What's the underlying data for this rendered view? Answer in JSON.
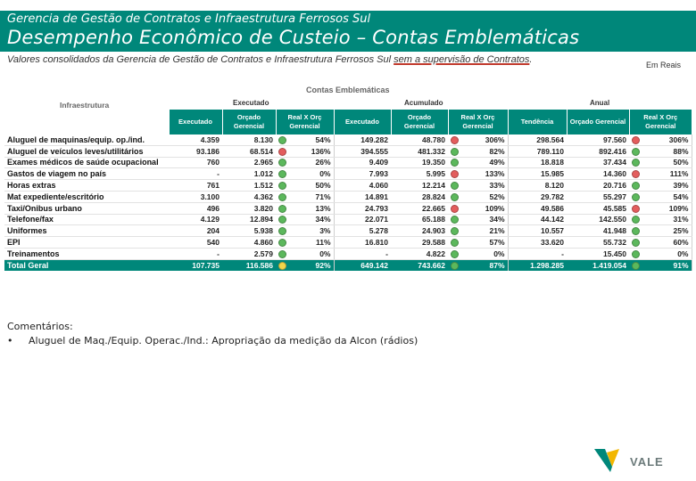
{
  "header": {
    "subtitle": "Gerencia de Gestão de Contratos e Infraestrutura Ferrosos Sul",
    "title": "Desempenho Econômico de Custeio – Contas Emblemáticas"
  },
  "description": {
    "text_a": "Valores consolidados da Gerencia de Gestão de Contratos e Infraestrutura Ferrosos Sul",
    "text_b": "sem a supervisão de Contratos",
    "text_end": "."
  },
  "unit_label": "Em Reais",
  "table": {
    "title": "Contas Emblemáticas",
    "section_label": "Infraestrutura",
    "groups": {
      "executado": "Executado",
      "acumulado": "Acumulado",
      "anual": "Anual"
    },
    "columns": [
      "Executado",
      "Orçado Gerencial",
      "Real X Orç Gerencial",
      "Executado",
      "Orçado Gerencial",
      "Real X Orç Gerencial",
      "Tendência",
      "Orçado Gerencial",
      "Real X Orç Gerencial"
    ],
    "rows": [
      {
        "label": "Aluguel de maquinas/equip. op./ind.",
        "v": [
          "4.359",
          "8.130",
          "54%",
          "149.282",
          "48.780",
          "306%",
          "298.564",
          "97.560",
          "306%"
        ],
        "s": [
          "green",
          "red",
          "red"
        ]
      },
      {
        "label": "Aluguel de veículos leves/utilitários",
        "v": [
          "93.186",
          "68.514",
          "136%",
          "394.555",
          "481.332",
          "82%",
          "789.110",
          "892.416",
          "88%"
        ],
        "s": [
          "red",
          "green",
          "green"
        ]
      },
      {
        "label": "Exames médicos de saúde ocupacional",
        "v": [
          "760",
          "2.965",
          "26%",
          "9.409",
          "19.350",
          "49%",
          "18.818",
          "37.434",
          "50%"
        ],
        "s": [
          "green",
          "green",
          "green"
        ]
      },
      {
        "label": "Gastos de viagem no país",
        "v": [
          "-",
          "1.012",
          "0%",
          "7.993",
          "5.995",
          "133%",
          "15.985",
          "14.360",
          "111%"
        ],
        "s": [
          "green",
          "red",
          "red"
        ]
      },
      {
        "label": "Horas extras",
        "v": [
          "761",
          "1.512",
          "50%",
          "4.060",
          "12.214",
          "33%",
          "8.120",
          "20.716",
          "39%"
        ],
        "s": [
          "green",
          "green",
          "green"
        ]
      },
      {
        "label": "Mat expediente/escritório",
        "v": [
          "3.100",
          "4.362",
          "71%",
          "14.891",
          "28.824",
          "52%",
          "29.782",
          "55.297",
          "54%"
        ],
        "s": [
          "green",
          "green",
          "green"
        ]
      },
      {
        "label": "Taxi/Onibus urbano",
        "v": [
          "496",
          "3.820",
          "13%",
          "24.793",
          "22.665",
          "109%",
          "49.586",
          "45.585",
          "109%"
        ],
        "s": [
          "green",
          "red",
          "red"
        ]
      },
      {
        "label": "Telefone/fax",
        "v": [
          "4.129",
          "12.894",
          "34%",
          "22.071",
          "65.188",
          "34%",
          "44.142",
          "142.550",
          "31%"
        ],
        "s": [
          "green",
          "green",
          "green"
        ]
      },
      {
        "label": "Uniformes",
        "v": [
          "204",
          "5.938",
          "3%",
          "5.278",
          "24.903",
          "21%",
          "10.557",
          "41.948",
          "25%"
        ],
        "s": [
          "green",
          "green",
          "green"
        ]
      },
      {
        "label": "EPI",
        "v": [
          "540",
          "4.860",
          "11%",
          "16.810",
          "29.588",
          "57%",
          "33.620",
          "55.732",
          "60%"
        ],
        "s": [
          "green",
          "green",
          "green"
        ]
      },
      {
        "label": "Treinamentos",
        "v": [
          "-",
          "2.579",
          "0%",
          "-",
          "4.822",
          "0%",
          "-",
          "15.450",
          "0%"
        ],
        "s": [
          "green",
          "green",
          "green"
        ]
      }
    ],
    "total": {
      "label": "Total Geral",
      "v": [
        "107.735",
        "116.586",
        "92%",
        "649.142",
        "743.662",
        "87%",
        "1.298.285",
        "1.419.054",
        "91%"
      ],
      "s": [
        "yellow",
        "green",
        "green"
      ]
    }
  },
  "comments": {
    "title": "Comentários:",
    "bullet_mark": "•",
    "item": "Aluguel de Maq./Equip. Operac./Ind.: Apropriação da medição da Alcon (rádios)"
  },
  "logo": {
    "text": "VALE",
    "colors": {
      "green": "#00877a",
      "yellow": "#f2b600"
    }
  },
  "colors": {
    "header_bg": "#00877a",
    "status_green": "#5cb85c",
    "status_red": "#e35d5d",
    "status_yellow": "#f0d54a"
  }
}
